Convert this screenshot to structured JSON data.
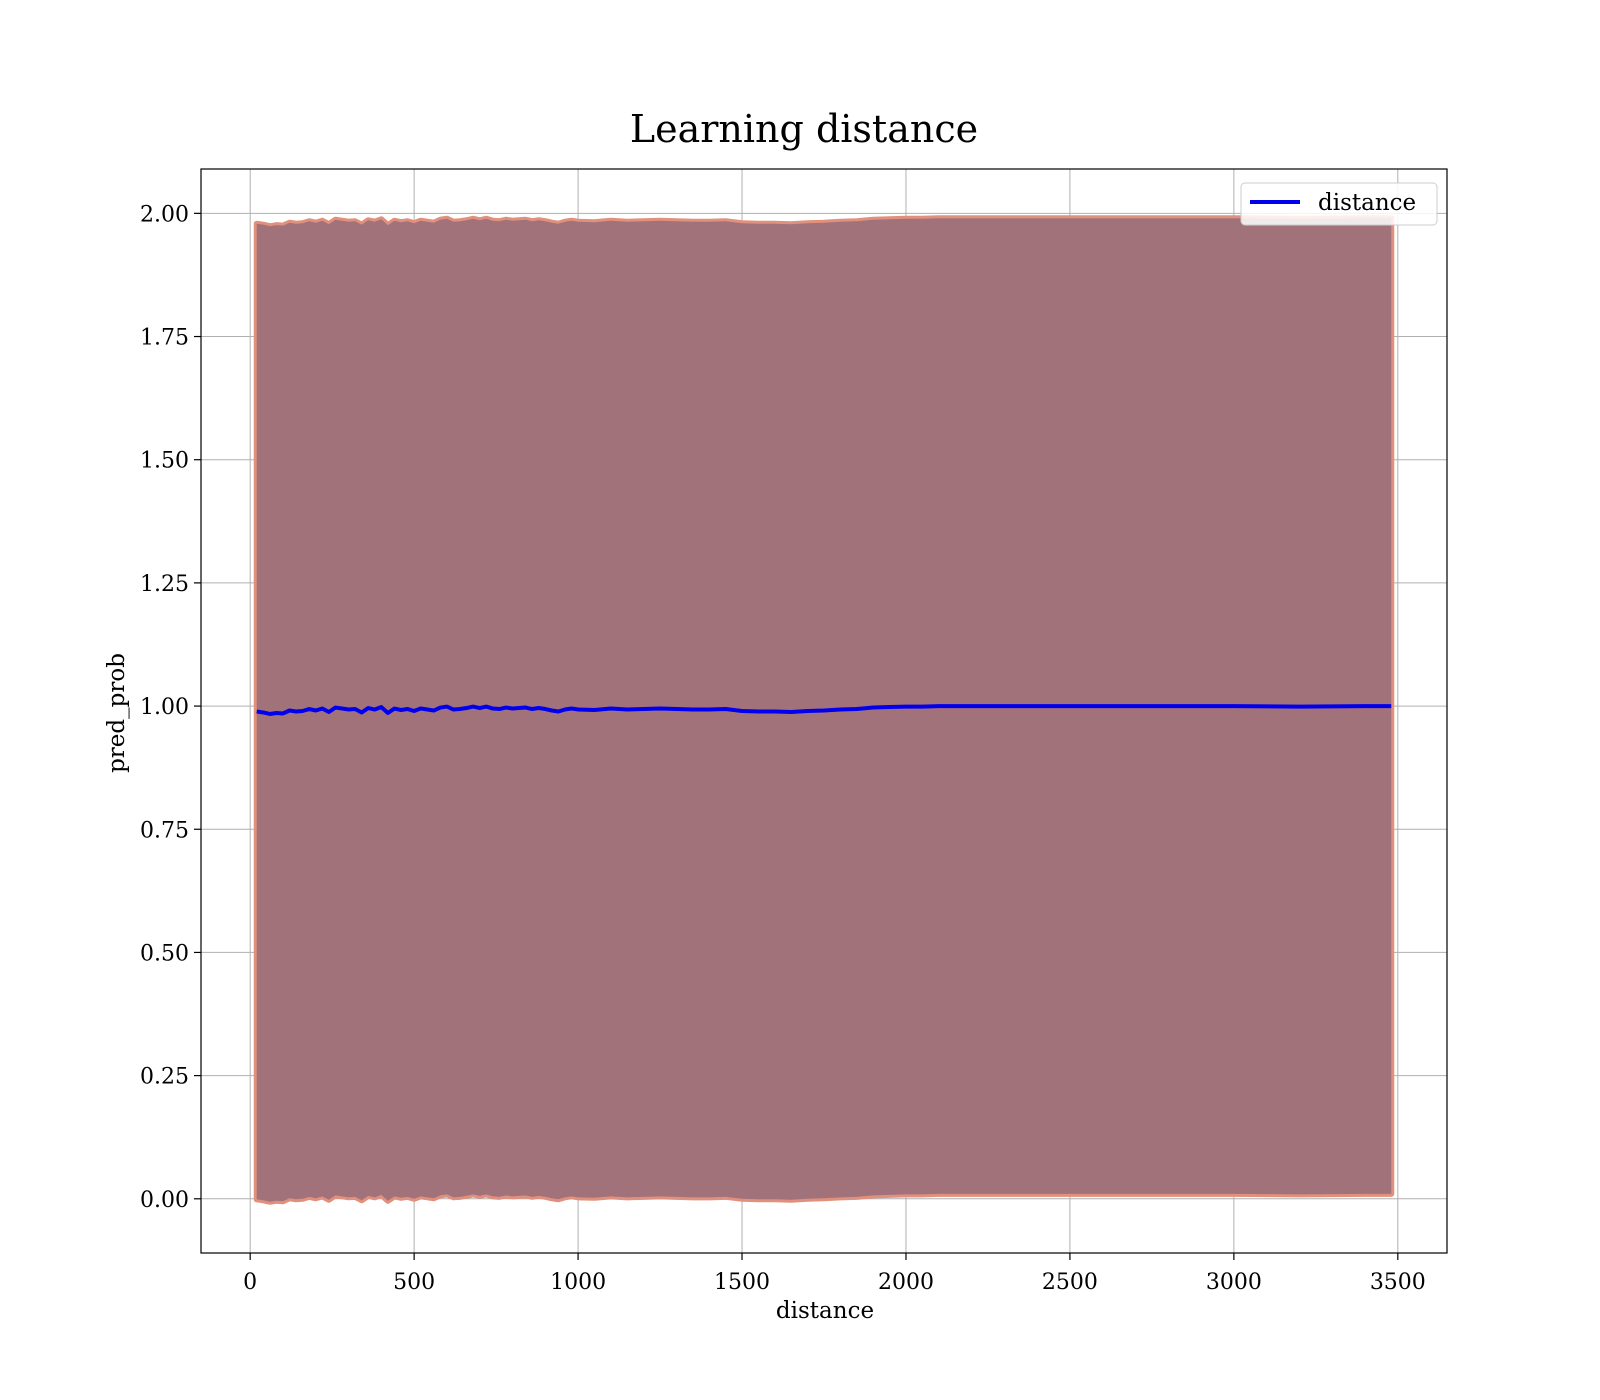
{
  "chart_data": {
    "type": "line",
    "title": "Learning distance",
    "xlabel": "distance",
    "ylabel": "pred_prob",
    "xlim": [
      -150,
      3650
    ],
    "ylim": [
      -0.11,
      2.09
    ],
    "xticks": [
      0,
      500,
      1000,
      1500,
      2000,
      2500,
      3000,
      3500
    ],
    "xtick_labels": [
      "0",
      "500",
      "1000",
      "1500",
      "2000",
      "2500",
      "3000",
      "3500"
    ],
    "yticks": [
      0.0,
      0.25,
      0.5,
      0.75,
      1.0,
      1.25,
      1.5,
      1.75,
      2.0
    ],
    "ytick_labels": [
      "0.00",
      "0.25",
      "0.50",
      "0.75",
      "1.00",
      "1.25",
      "1.50",
      "1.75",
      "2.00"
    ],
    "grid": true,
    "legend": {
      "position": "top-right",
      "entries": [
        "distance"
      ]
    },
    "colors": {
      "line": "#0000ee",
      "band_fill": "#a2727b",
      "band_edge": "#e0907c"
    },
    "series": [
      {
        "name": "distance",
        "x": [
          20,
          40,
          60,
          80,
          100,
          120,
          140,
          160,
          180,
          200,
          220,
          240,
          260,
          280,
          300,
          320,
          340,
          360,
          380,
          400,
          420,
          440,
          460,
          480,
          500,
          520,
          540,
          560,
          580,
          600,
          620,
          640,
          660,
          680,
          700,
          720,
          740,
          760,
          780,
          800,
          820,
          840,
          860,
          880,
          900,
          920,
          940,
          960,
          980,
          1000,
          1050,
          1100,
          1150,
          1200,
          1250,
          1300,
          1350,
          1400,
          1450,
          1500,
          1550,
          1600,
          1650,
          1700,
          1750,
          1800,
          1850,
          1900,
          1950,
          2000,
          2050,
          2100,
          2200,
          2400,
          2600,
          2800,
          3000,
          3200,
          3400,
          3480
        ],
        "y": [
          0.989,
          0.987,
          0.984,
          0.986,
          0.985,
          0.991,
          0.989,
          0.99,
          0.994,
          0.991,
          0.995,
          0.988,
          0.997,
          0.995,
          0.993,
          0.994,
          0.987,
          0.996,
          0.993,
          0.998,
          0.986,
          0.995,
          0.992,
          0.994,
          0.99,
          0.995,
          0.993,
          0.991,
          0.997,
          0.999,
          0.993,
          0.994,
          0.996,
          0.999,
          0.996,
          0.999,
          0.995,
          0.994,
          0.997,
          0.995,
          0.996,
          0.997,
          0.994,
          0.996,
          0.994,
          0.991,
          0.989,
          0.993,
          0.995,
          0.993,
          0.992,
          0.995,
          0.993,
          0.994,
          0.995,
          0.994,
          0.993,
          0.993,
          0.994,
          0.99,
          0.989,
          0.989,
          0.988,
          0.99,
          0.991,
          0.993,
          0.994,
          0.997,
          0.998,
          0.999,
          0.999,
          1.0,
          1.0,
          1.0,
          1.0,
          1.0,
          1.0,
          0.999,
          1.0,
          1.0
        ]
      }
    ],
    "band": {
      "x": [
        20,
        40,
        60,
        80,
        100,
        120,
        140,
        160,
        180,
        200,
        220,
        240,
        260,
        280,
        300,
        320,
        340,
        360,
        380,
        400,
        420,
        440,
        460,
        480,
        500,
        520,
        540,
        560,
        580,
        600,
        620,
        640,
        660,
        680,
        700,
        720,
        740,
        760,
        780,
        800,
        820,
        840,
        860,
        880,
        900,
        920,
        940,
        960,
        980,
        1000,
        1050,
        1100,
        1150,
        1200,
        1250,
        1300,
        1350,
        1400,
        1450,
        1500,
        1550,
        1600,
        1650,
        1700,
        1750,
        1800,
        1850,
        1900,
        1950,
        2000,
        2050,
        2100,
        2200,
        2400,
        2600,
        2800,
        3000,
        3200,
        3400,
        3480
      ],
      "upper": [
        1.979,
        1.977,
        1.974,
        1.976,
        1.975,
        1.981,
        1.979,
        1.98,
        1.984,
        1.981,
        1.985,
        1.978,
        1.987,
        1.985,
        1.983,
        1.984,
        1.977,
        1.986,
        1.983,
        1.988,
        1.976,
        1.985,
        1.982,
        1.984,
        1.98,
        1.985,
        1.983,
        1.981,
        1.987,
        1.989,
        1.983,
        1.984,
        1.986,
        1.989,
        1.986,
        1.989,
        1.985,
        1.984,
        1.987,
        1.985,
        1.986,
        1.987,
        1.984,
        1.986,
        1.984,
        1.981,
        1.979,
        1.983,
        1.985,
        1.983,
        1.982,
        1.985,
        1.983,
        1.984,
        1.985,
        1.984,
        1.983,
        1.983,
        1.984,
        1.98,
        1.979,
        1.979,
        1.978,
        1.98,
        1.981,
        1.983,
        1.984,
        1.987,
        1.988,
        1.989,
        1.989,
        1.99,
        1.99,
        1.99,
        1.99,
        1.99,
        1.99,
        1.989,
        1.99,
        1.99
      ],
      "lower": [
        -0.001,
        -0.003,
        -0.006,
        -0.004,
        -0.005,
        0.001,
        -0.001,
        0.0,
        0.004,
        0.001,
        0.005,
        -0.002,
        0.007,
        0.005,
        0.003,
        0.004,
        -0.003,
        0.006,
        0.003,
        0.008,
        -0.004,
        0.005,
        0.002,
        0.004,
        0.0,
        0.005,
        0.003,
        0.001,
        0.007,
        0.009,
        0.003,
        0.004,
        0.006,
        0.009,
        0.006,
        0.009,
        0.005,
        0.004,
        0.007,
        0.005,
        0.006,
        0.007,
        0.004,
        0.006,
        0.004,
        0.001,
        -0.001,
        0.003,
        0.005,
        0.003,
        0.002,
        0.005,
        0.003,
        0.004,
        0.005,
        0.004,
        0.003,
        0.003,
        0.004,
        0.0,
        -0.001,
        -0.001,
        -0.002,
        0.0,
        0.001,
        0.003,
        0.004,
        0.007,
        0.008,
        0.009,
        0.009,
        0.01,
        0.01,
        0.01,
        0.01,
        0.01,
        0.01,
        0.009,
        0.01,
        0.01
      ]
    }
  }
}
